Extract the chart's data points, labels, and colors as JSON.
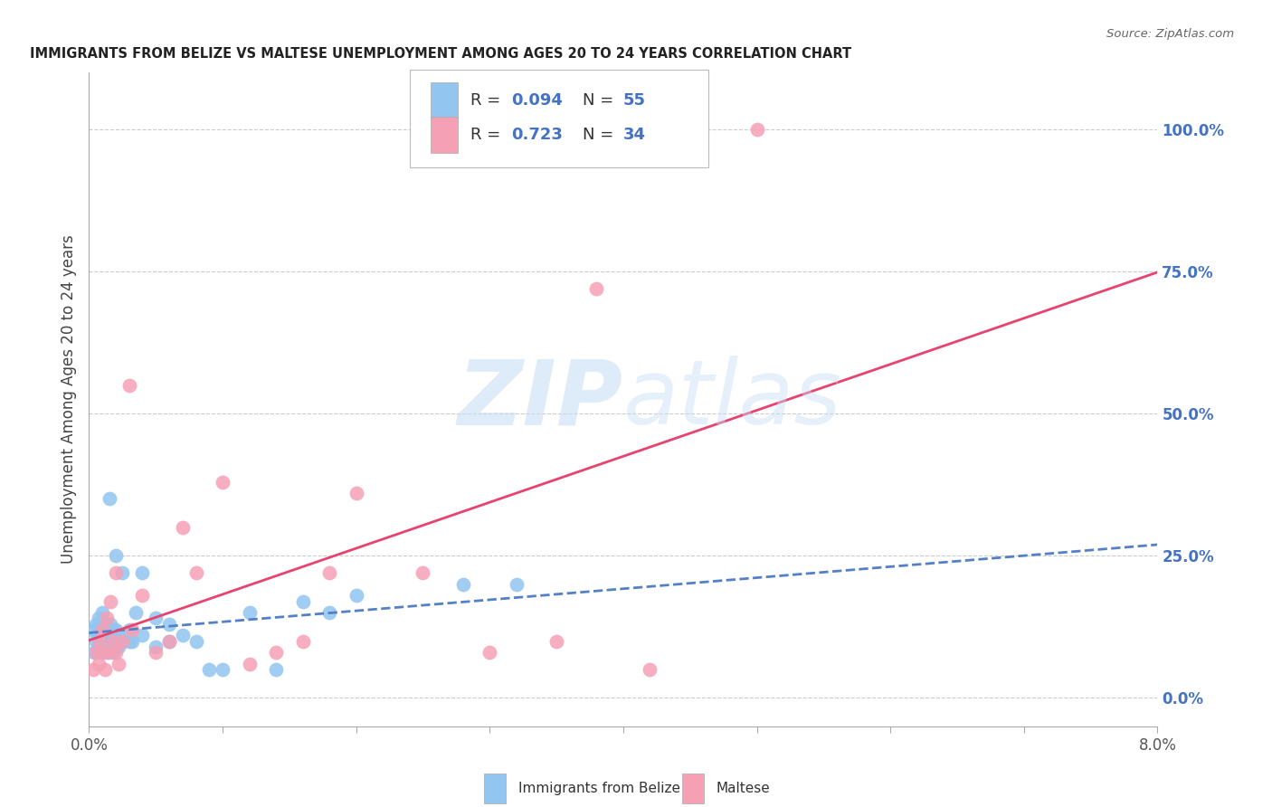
{
  "title": "IMMIGRANTS FROM BELIZE VS MALTESE UNEMPLOYMENT AMONG AGES 20 TO 24 YEARS CORRELATION CHART",
  "source": "Source: ZipAtlas.com",
  "ylabel": "Unemployment Among Ages 20 to 24 years",
  "yticks_right": [
    0.0,
    0.25,
    0.5,
    0.75,
    1.0
  ],
  "ytick_labels_right": [
    "0.0%",
    "25.0%",
    "50.0%",
    "75.0%",
    "100.0%"
  ],
  "xmin": 0.0,
  "xmax": 0.08,
  "ymin": -0.05,
  "ymax": 1.1,
  "legend_r_blue": "0.094",
  "legend_n_blue": "55",
  "legend_r_pink": "0.723",
  "legend_n_pink": "34",
  "blue_scatter_x": [
    0.0003,
    0.0004,
    0.0005,
    0.0005,
    0.0006,
    0.0007,
    0.0007,
    0.0008,
    0.0008,
    0.0009,
    0.0009,
    0.001,
    0.001,
    0.001,
    0.001,
    0.0012,
    0.0012,
    0.0013,
    0.0013,
    0.0014,
    0.0015,
    0.0015,
    0.0016,
    0.0016,
    0.0017,
    0.0018,
    0.0018,
    0.002,
    0.002,
    0.002,
    0.0022,
    0.0022,
    0.0025,
    0.0025,
    0.003,
    0.003,
    0.0032,
    0.0035,
    0.004,
    0.004,
    0.005,
    0.005,
    0.006,
    0.006,
    0.007,
    0.008,
    0.009,
    0.01,
    0.012,
    0.014,
    0.016,
    0.018,
    0.02,
    0.028,
    0.032
  ],
  "blue_scatter_y": [
    0.12,
    0.08,
    0.1,
    0.13,
    0.11,
    0.09,
    0.14,
    0.1,
    0.12,
    0.08,
    0.11,
    0.1,
    0.12,
    0.15,
    0.09,
    0.1,
    0.13,
    0.08,
    0.11,
    0.1,
    0.35,
    0.09,
    0.11,
    0.13,
    0.1,
    0.12,
    0.08,
    0.25,
    0.1,
    0.12,
    0.09,
    0.11,
    0.1,
    0.22,
    0.1,
    0.12,
    0.1,
    0.15,
    0.11,
    0.22,
    0.09,
    0.14,
    0.1,
    0.13,
    0.11,
    0.1,
    0.05,
    0.05,
    0.15,
    0.05,
    0.17,
    0.15,
    0.18,
    0.2,
    0.2
  ],
  "pink_scatter_x": [
    0.0003,
    0.0005,
    0.0007,
    0.0008,
    0.001,
    0.001,
    0.0012,
    0.0013,
    0.0015,
    0.0016,
    0.0018,
    0.002,
    0.002,
    0.0022,
    0.0025,
    0.003,
    0.0032,
    0.004,
    0.005,
    0.006,
    0.007,
    0.008,
    0.01,
    0.012,
    0.014,
    0.016,
    0.018,
    0.02,
    0.025,
    0.03,
    0.035,
    0.038,
    0.042,
    0.05
  ],
  "pink_scatter_y": [
    0.05,
    0.08,
    0.06,
    0.1,
    0.08,
    0.12,
    0.05,
    0.14,
    0.08,
    0.17,
    0.1,
    0.08,
    0.22,
    0.06,
    0.1,
    0.55,
    0.12,
    0.18,
    0.08,
    0.1,
    0.3,
    0.22,
    0.38,
    0.06,
    0.08,
    0.1,
    0.22,
    0.36,
    0.22,
    0.08,
    0.1,
    0.72,
    0.05,
    1.0
  ],
  "blue_color": "#92C5F0",
  "pink_color": "#F5A0B5",
  "blue_line_color": "#5580C8",
  "pink_line_color": "#E8436F",
  "watermark_zip": "ZIP",
  "watermark_atlas": "atlas",
  "background_color": "#FFFFFF",
  "grid_color": "#CCCCCC"
}
